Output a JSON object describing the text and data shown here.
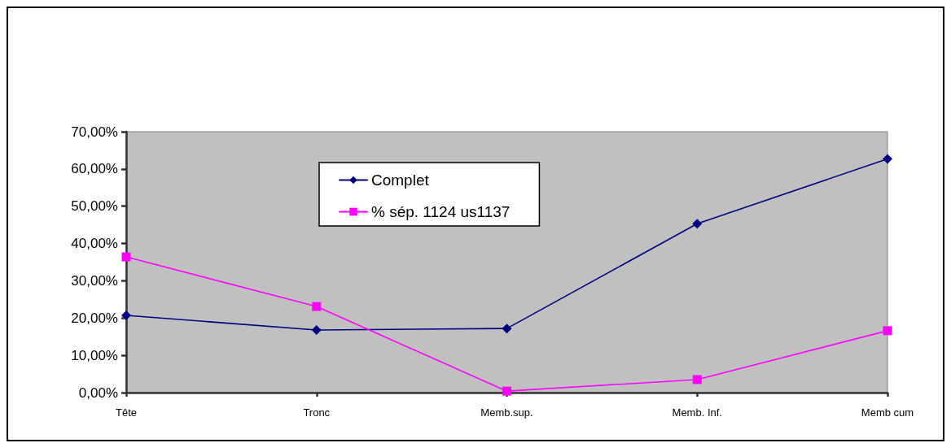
{
  "chart_data": {
    "type": "line",
    "categories": [
      "Tête",
      "Tronc",
      "Memb.sup.",
      "Memb. Inf.",
      "Memb cum"
    ],
    "series": [
      {
        "name": "Complet",
        "color": "#000080",
        "marker": "diamond",
        "values": [
          20.7,
          16.8,
          17.2,
          45.3,
          62.7
        ]
      },
      {
        "name": "% sép. 1124 us1137",
        "color": "#ff00ff",
        "marker": "square",
        "values": [
          36.4,
          23.1,
          0.4,
          3.5,
          16.6
        ]
      }
    ],
    "ylim": [
      0,
      70
    ],
    "yticks": [
      {
        "value": 0,
        "label": "0,00%"
      },
      {
        "value": 10,
        "label": "10,00%"
      },
      {
        "value": 20,
        "label": "20,00%"
      },
      {
        "value": 30,
        "label": "30,00%"
      },
      {
        "value": 40,
        "label": "40,00%"
      },
      {
        "value": 50,
        "label": "50,00%"
      },
      {
        "value": 60,
        "label": "60,00%"
      },
      {
        "value": 70,
        "label": "70,00%"
      }
    ],
    "grid": false,
    "legend": "top",
    "line_style": "solid"
  }
}
